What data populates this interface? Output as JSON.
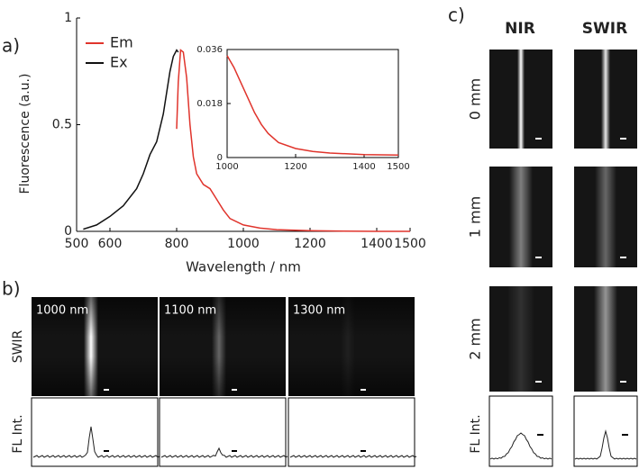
{
  "chart_data": [
    {
      "type": "line",
      "xlabel": "Wavelength / nm",
      "ylabel": "Fluorescence (a.u.)",
      "xlim": [
        500,
        1500
      ],
      "xticks": [
        500,
        600,
        800,
        1000,
        1200,
        1400,
        1500
      ],
      "ylim": [
        0,
        1
      ],
      "yticks": [
        0,
        0.5,
        1
      ],
      "legend": "upper-left",
      "series": [
        {
          "name": "Em",
          "color": "#e0342c",
          "x": [
            800,
            805,
            812,
            820,
            830,
            840,
            850,
            860,
            880,
            900,
            920,
            940,
            960,
            1000,
            1050,
            1100,
            1200,
            1300,
            1400,
            1500
          ],
          "values": [
            0.48,
            0.7,
            0.85,
            0.84,
            0.72,
            0.5,
            0.35,
            0.27,
            0.22,
            0.2,
            0.15,
            0.1,
            0.06,
            0.03,
            0.015,
            0.008,
            0.003,
            0.001,
            0,
            0
          ]
        },
        {
          "name": "Ex",
          "color": "#111111",
          "x": [
            520,
            560,
            600,
            640,
            680,
            700,
            720,
            740,
            760,
            770,
            780,
            790,
            800,
            805
          ],
          "values": [
            0.01,
            0.03,
            0.07,
            0.12,
            0.2,
            0.27,
            0.36,
            0.42,
            0.55,
            0.65,
            0.75,
            0.82,
            0.85,
            0.84
          ]
        }
      ]
    },
    {
      "type": "line",
      "xlim": [
        1000,
        1500
      ],
      "xticks": [
        1000,
        1200,
        1400,
        1500
      ],
      "ylim": [
        0,
        0.036
      ],
      "yticks": [
        0,
        0.018,
        0.036
      ],
      "series": [
        {
          "color": "#e0342c",
          "x": [
            1000,
            1020,
            1040,
            1060,
            1080,
            1100,
            1120,
            1150,
            1200,
            1250,
            1300,
            1400,
            1500
          ],
          "values": [
            0.034,
            0.03,
            0.025,
            0.02,
            0.015,
            0.011,
            0.008,
            0.005,
            0.003,
            0.002,
            0.0015,
            0.001,
            0.0008
          ]
        }
      ]
    }
  ],
  "panel_a": {
    "label": "a)"
  },
  "panel_b": {
    "label": "b)",
    "row_labels": [
      "SWIR",
      "FL Int."
    ],
    "images": [
      "1000 nm",
      "1100 nm",
      "1300 nm"
    ]
  },
  "panel_c": {
    "label": "c)",
    "columns": [
      "NIR",
      "SWIR"
    ],
    "rows": [
      "0 mm",
      "1 mm",
      "2 mm"
    ],
    "profile_label": "FL Int."
  }
}
